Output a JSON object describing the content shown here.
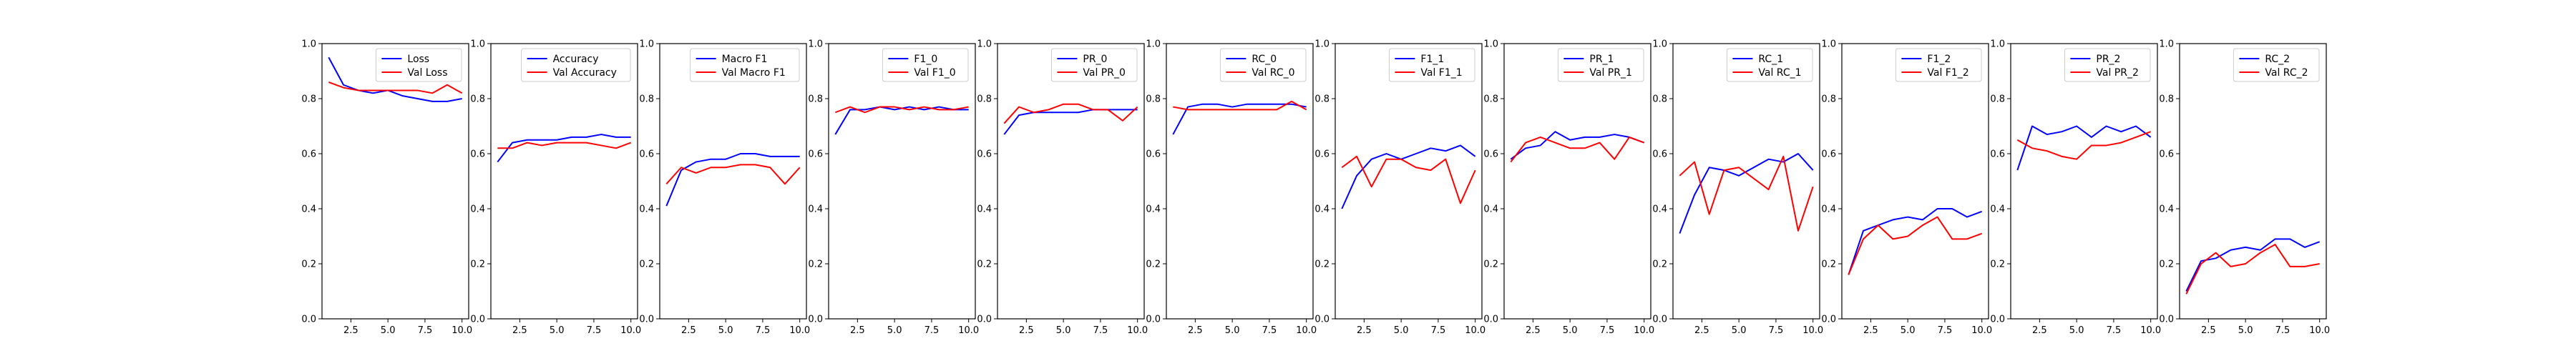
{
  "figure": {
    "background": "#ffffff"
  },
  "colors": {
    "train": "#0000ff",
    "val": "#ff0000",
    "axis": "#000000"
  },
  "chart_data": [
    {
      "type": "line",
      "title": "",
      "xlabel": "",
      "ylabel": "",
      "x": [
        1,
        2,
        3,
        4,
        5,
        6,
        7,
        8,
        9,
        10
      ],
      "xlim": [
        0.55,
        10.45
      ],
      "ylim": [
        0,
        1
      ],
      "xticks": [
        "2.5",
        "5.0",
        "7.5",
        "10.0"
      ],
      "yticks": [
        "0.0",
        "0.2",
        "0.4",
        "0.6",
        "0.8",
        "1.0"
      ],
      "legend": "upper-right",
      "grid": false,
      "series": [
        {
          "name": "Loss",
          "color": "#0000ff",
          "values": [
            0.95,
            0.85,
            0.83,
            0.82,
            0.83,
            0.81,
            0.8,
            0.79,
            0.79,
            0.8
          ]
        },
        {
          "name": "Val Loss",
          "color": "#ff0000",
          "values": [
            0.86,
            0.84,
            0.83,
            0.83,
            0.83,
            0.83,
            0.83,
            0.82,
            0.85,
            0.82
          ]
        }
      ]
    },
    {
      "type": "line",
      "title": "",
      "xlabel": "",
      "ylabel": "",
      "x": [
        1,
        2,
        3,
        4,
        5,
        6,
        7,
        8,
        9,
        10
      ],
      "xlim": [
        0.55,
        10.45
      ],
      "ylim": [
        0,
        1
      ],
      "xticks": [
        "2.5",
        "5.0",
        "7.5",
        "10.0"
      ],
      "yticks": [
        "0.0",
        "0.2",
        "0.4",
        "0.6",
        "0.8",
        "1.0"
      ],
      "legend": "upper-right",
      "grid": false,
      "series": [
        {
          "name": "Accuracy",
          "color": "#0000ff",
          "values": [
            0.57,
            0.64,
            0.65,
            0.65,
            0.65,
            0.66,
            0.66,
            0.67,
            0.66,
            0.66
          ]
        },
        {
          "name": "Val Accuracy",
          "color": "#ff0000",
          "values": [
            0.62,
            0.62,
            0.64,
            0.63,
            0.64,
            0.64,
            0.64,
            0.63,
            0.62,
            0.64
          ]
        }
      ]
    },
    {
      "type": "line",
      "title": "",
      "xlabel": "",
      "ylabel": "",
      "x": [
        1,
        2,
        3,
        4,
        5,
        6,
        7,
        8,
        9,
        10
      ],
      "xlim": [
        0.55,
        10.45
      ],
      "ylim": [
        0,
        1
      ],
      "xticks": [
        "2.5",
        "5.0",
        "7.5",
        "10.0"
      ],
      "yticks": [
        "0.0",
        "0.2",
        "0.4",
        "0.6",
        "0.8",
        "1.0"
      ],
      "legend": "upper-right",
      "grid": false,
      "series": [
        {
          "name": "Macro F1",
          "color": "#0000ff",
          "values": [
            0.41,
            0.54,
            0.57,
            0.58,
            0.58,
            0.6,
            0.6,
            0.59,
            0.59,
            0.59
          ]
        },
        {
          "name": "Val Macro F1",
          "color": "#ff0000",
          "values": [
            0.49,
            0.55,
            0.53,
            0.55,
            0.55,
            0.56,
            0.56,
            0.55,
            0.49,
            0.55
          ]
        }
      ]
    },
    {
      "type": "line",
      "title": "",
      "xlabel": "",
      "ylabel": "",
      "x": [
        1,
        2,
        3,
        4,
        5,
        6,
        7,
        8,
        9,
        10
      ],
      "xlim": [
        0.55,
        10.45
      ],
      "ylim": [
        0,
        1
      ],
      "xticks": [
        "2.5",
        "5.0",
        "7.5",
        "10.0"
      ],
      "yticks": [
        "0.0",
        "0.2",
        "0.4",
        "0.6",
        "0.8",
        "1.0"
      ],
      "legend": "upper-right",
      "grid": false,
      "series": [
        {
          "name": "F1_0",
          "color": "#0000ff",
          "values": [
            0.67,
            0.76,
            0.76,
            0.77,
            0.76,
            0.77,
            0.76,
            0.77,
            0.76,
            0.76
          ]
        },
        {
          "name": "Val F1_0",
          "color": "#ff0000",
          "values": [
            0.75,
            0.77,
            0.75,
            0.77,
            0.77,
            0.76,
            0.77,
            0.76,
            0.76,
            0.77
          ]
        }
      ]
    },
    {
      "type": "line",
      "title": "",
      "xlabel": "",
      "ylabel": "",
      "x": [
        1,
        2,
        3,
        4,
        5,
        6,
        7,
        8,
        9,
        10
      ],
      "xlim": [
        0.55,
        10.45
      ],
      "ylim": [
        0,
        1
      ],
      "xticks": [
        "2.5",
        "5.0",
        "7.5",
        "10.0"
      ],
      "yticks": [
        "0.0",
        "0.2",
        "0.4",
        "0.6",
        "0.8",
        "1.0"
      ],
      "legend": "upper-right",
      "grid": false,
      "series": [
        {
          "name": "PR_0",
          "color": "#0000ff",
          "values": [
            0.67,
            0.74,
            0.75,
            0.75,
            0.75,
            0.75,
            0.76,
            0.76,
            0.76,
            0.76
          ]
        },
        {
          "name": "Val PR_0",
          "color": "#ff0000",
          "values": [
            0.71,
            0.77,
            0.75,
            0.76,
            0.78,
            0.78,
            0.76,
            0.76,
            0.72,
            0.77
          ]
        }
      ]
    },
    {
      "type": "line",
      "title": "",
      "xlabel": "",
      "ylabel": "",
      "x": [
        1,
        2,
        3,
        4,
        5,
        6,
        7,
        8,
        9,
        10
      ],
      "xlim": [
        0.55,
        10.45
      ],
      "ylim": [
        0,
        1
      ],
      "xticks": [
        "2.5",
        "5.0",
        "7.5",
        "10.0"
      ],
      "yticks": [
        "0.0",
        "0.2",
        "0.4",
        "0.6",
        "0.8",
        "1.0"
      ],
      "legend": "upper-right",
      "grid": false,
      "series": [
        {
          "name": "RC_0",
          "color": "#0000ff",
          "values": [
            0.67,
            0.77,
            0.78,
            0.78,
            0.77,
            0.78,
            0.78,
            0.78,
            0.78,
            0.77
          ]
        },
        {
          "name": "Val RC_0",
          "color": "#ff0000",
          "values": [
            0.77,
            0.76,
            0.76,
            0.76,
            0.76,
            0.76,
            0.76,
            0.76,
            0.79,
            0.76
          ]
        }
      ]
    },
    {
      "type": "line",
      "title": "",
      "xlabel": "",
      "ylabel": "",
      "x": [
        1,
        2,
        3,
        4,
        5,
        6,
        7,
        8,
        9,
        10
      ],
      "xlim": [
        0.55,
        10.45
      ],
      "ylim": [
        0,
        1
      ],
      "xticks": [
        "2.5",
        "5.0",
        "7.5",
        "10.0"
      ],
      "yticks": [
        "0.0",
        "0.2",
        "0.4",
        "0.6",
        "0.8",
        "1.0"
      ],
      "legend": "upper-right",
      "grid": false,
      "series": [
        {
          "name": "F1_1",
          "color": "#0000ff",
          "values": [
            0.4,
            0.52,
            0.58,
            0.6,
            0.58,
            0.6,
            0.62,
            0.61,
            0.63,
            0.59
          ]
        },
        {
          "name": "Val F1_1",
          "color": "#ff0000",
          "values": [
            0.55,
            0.59,
            0.48,
            0.58,
            0.58,
            0.55,
            0.54,
            0.58,
            0.42,
            0.54
          ]
        }
      ]
    },
    {
      "type": "line",
      "title": "",
      "xlabel": "",
      "ylabel": "",
      "x": [
        1,
        2,
        3,
        4,
        5,
        6,
        7,
        8,
        9,
        10
      ],
      "xlim": [
        0.55,
        10.45
      ],
      "ylim": [
        0,
        1
      ],
      "xticks": [
        "2.5",
        "5.0",
        "7.5",
        "10.0"
      ],
      "yticks": [
        "0.0",
        "0.2",
        "0.4",
        "0.6",
        "0.8",
        "1.0"
      ],
      "legend": "upper-right",
      "grid": false,
      "series": [
        {
          "name": "PR_1",
          "color": "#0000ff",
          "values": [
            0.58,
            0.62,
            0.63,
            0.68,
            0.65,
            0.66,
            0.66,
            0.67,
            0.66,
            0.64
          ]
        },
        {
          "name": "Val PR_1",
          "color": "#ff0000",
          "values": [
            0.57,
            0.64,
            0.66,
            0.64,
            0.62,
            0.62,
            0.64,
            0.58,
            0.66,
            0.64
          ]
        }
      ]
    },
    {
      "type": "line",
      "title": "",
      "xlabel": "",
      "ylabel": "",
      "x": [
        1,
        2,
        3,
        4,
        5,
        6,
        7,
        8,
        9,
        10
      ],
      "xlim": [
        0.55,
        10.45
      ],
      "ylim": [
        0,
        1
      ],
      "xticks": [
        "2.5",
        "5.0",
        "7.5",
        "10.0"
      ],
      "yticks": [
        "0.0",
        "0.2",
        "0.4",
        "0.6",
        "0.8",
        "1.0"
      ],
      "legend": "upper-right",
      "grid": false,
      "series": [
        {
          "name": "RC_1",
          "color": "#0000ff",
          "values": [
            0.31,
            0.45,
            0.55,
            0.54,
            0.52,
            0.55,
            0.58,
            0.57,
            0.6,
            0.54
          ]
        },
        {
          "name": "Val RC_1",
          "color": "#ff0000",
          "values": [
            0.52,
            0.57,
            0.38,
            0.54,
            0.55,
            0.51,
            0.47,
            0.59,
            0.32,
            0.48
          ]
        }
      ]
    },
    {
      "type": "line",
      "title": "",
      "xlabel": "",
      "ylabel": "",
      "x": [
        1,
        2,
        3,
        4,
        5,
        6,
        7,
        8,
        9,
        10
      ],
      "xlim": [
        0.55,
        10.45
      ],
      "ylim": [
        0,
        1
      ],
      "xticks": [
        "2.5",
        "5.0",
        "7.5",
        "10.0"
      ],
      "yticks": [
        "0.0",
        "0.2",
        "0.4",
        "0.6",
        "0.8",
        "1.0"
      ],
      "legend": "upper-right",
      "grid": false,
      "series": [
        {
          "name": "F1_2",
          "color": "#0000ff",
          "values": [
            0.16,
            0.32,
            0.34,
            0.36,
            0.37,
            0.36,
            0.4,
            0.4,
            0.37,
            0.39
          ]
        },
        {
          "name": "Val F1_2",
          "color": "#ff0000",
          "values": [
            0.16,
            0.29,
            0.34,
            0.29,
            0.3,
            0.34,
            0.37,
            0.29,
            0.29,
            0.31
          ]
        }
      ]
    },
    {
      "type": "line",
      "title": "",
      "xlabel": "",
      "ylabel": "",
      "x": [
        1,
        2,
        3,
        4,
        5,
        6,
        7,
        8,
        9,
        10
      ],
      "xlim": [
        0.55,
        10.45
      ],
      "ylim": [
        0,
        1
      ],
      "xticks": [
        "2.5",
        "5.0",
        "7.5",
        "10.0"
      ],
      "yticks": [
        "0.0",
        "0.2",
        "0.4",
        "0.6",
        "0.8",
        "1.0"
      ],
      "legend": "upper-right",
      "grid": false,
      "series": [
        {
          "name": "PR_2",
          "color": "#0000ff",
          "values": [
            0.54,
            0.7,
            0.67,
            0.68,
            0.7,
            0.66,
            0.7,
            0.68,
            0.7,
            0.66
          ]
        },
        {
          "name": "Val PR_2",
          "color": "#ff0000",
          "values": [
            0.65,
            0.62,
            0.61,
            0.59,
            0.58,
            0.63,
            0.63,
            0.64,
            0.66,
            0.68
          ]
        }
      ]
    },
    {
      "type": "line",
      "title": "",
      "xlabel": "",
      "ylabel": "",
      "x": [
        1,
        2,
        3,
        4,
        5,
        6,
        7,
        8,
        9,
        10
      ],
      "xlim": [
        0.55,
        10.45
      ],
      "ylim": [
        0,
        1
      ],
      "xticks": [
        "2.5",
        "5.0",
        "7.5",
        "10.0"
      ],
      "yticks": [
        "0.0",
        "0.2",
        "0.4",
        "0.6",
        "0.8",
        "1.0"
      ],
      "legend": "upper-right",
      "grid": false,
      "series": [
        {
          "name": "RC_2",
          "color": "#0000ff",
          "values": [
            0.1,
            0.21,
            0.22,
            0.25,
            0.26,
            0.25,
            0.29,
            0.29,
            0.26,
            0.28
          ]
        },
        {
          "name": "Val RC_2",
          "color": "#ff0000",
          "values": [
            0.09,
            0.2,
            0.24,
            0.19,
            0.2,
            0.24,
            0.27,
            0.19,
            0.19,
            0.2
          ]
        }
      ]
    }
  ]
}
